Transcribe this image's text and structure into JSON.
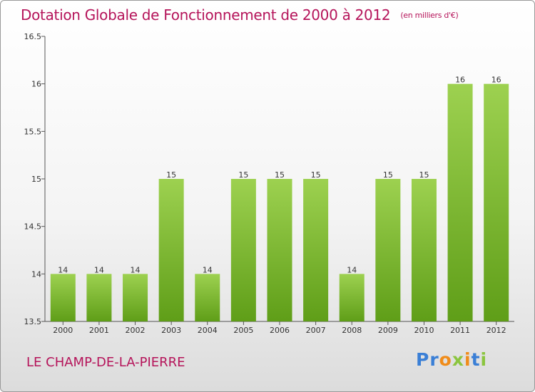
{
  "header": {
    "title": "Dotation Globale de Fonctionnement de 2000 à 2012",
    "unit": "(en milliers d'€)"
  },
  "footer": {
    "commune": "LE CHAMP-DE-LA-PIERRE",
    "logo": "Proxiti"
  },
  "colors": {
    "title": "#b5145a",
    "bar_light": "#9dd150",
    "bar_dark": "#5f9e18",
    "logo_blue": "#3a7fd6",
    "logo_green": "#8bc53f",
    "logo_orange": "#f08c1a"
  },
  "chart_data": {
    "type": "bar",
    "title": "Dotation Globale de Fonctionnement de 2000 à 2012",
    "subtitle": "(en milliers d'€)",
    "categories": [
      "2000",
      "2001",
      "2002",
      "2003",
      "2004",
      "2005",
      "2006",
      "2007",
      "2008",
      "2009",
      "2010",
      "2011",
      "2012"
    ],
    "values": [
      14,
      14,
      14,
      15,
      14,
      15,
      15,
      15,
      14,
      15,
      15,
      16,
      16
    ],
    "data_labels": [
      "14",
      "14",
      "14",
      "15",
      "14",
      "15",
      "15",
      "15",
      "14",
      "15",
      "15",
      "16",
      "16"
    ],
    "ylim": [
      13.5,
      16.5
    ],
    "y_ticks": [
      13.5,
      14,
      14.5,
      15,
      15.5,
      16,
      16.5
    ],
    "y_tick_labels": [
      "13.5",
      "14",
      "14.5",
      "15",
      "15.5",
      "16",
      "16.5"
    ],
    "grid": false,
    "legend": "none"
  }
}
